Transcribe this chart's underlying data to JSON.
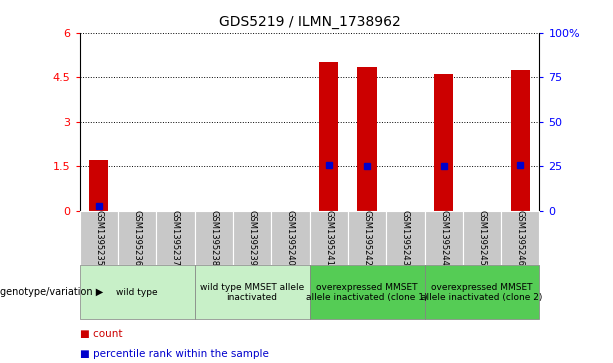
{
  "title": "GDS5219 / ILMN_1738962",
  "samples": [
    "GSM1395235",
    "GSM1395236",
    "GSM1395237",
    "GSM1395238",
    "GSM1395239",
    "GSM1395240",
    "GSM1395241",
    "GSM1395242",
    "GSM1395243",
    "GSM1395244",
    "GSM1395245",
    "GSM1395246"
  ],
  "counts": [
    1.7,
    0,
    0,
    0,
    0,
    0,
    5.0,
    4.85,
    0,
    4.6,
    0,
    4.75
  ],
  "percentiles_left_axis": [
    0.15,
    0,
    0,
    0,
    0,
    0,
    1.55,
    1.5,
    0,
    1.5,
    0,
    1.55
  ],
  "ylim_left": [
    0,
    6
  ],
  "ylim_right": [
    0,
    100
  ],
  "yticks_left": [
    0,
    1.5,
    3,
    4.5,
    6
  ],
  "yticks_right": [
    0,
    25,
    50,
    75,
    100
  ],
  "ytick_labels_left": [
    "0",
    "1.5",
    "3",
    "4.5",
    "6"
  ],
  "ytick_labels_right": [
    "0",
    "25",
    "50",
    "75",
    "100%"
  ],
  "bar_color": "#cc0000",
  "dot_color": "#0000cc",
  "groups": [
    {
      "label": "wild type",
      "start": 0,
      "end": 3
    },
    {
      "label": "wild type MMSET allele\ninactivated",
      "start": 3,
      "end": 6
    },
    {
      "label": "overexpressed MMSET\nallele inactivated (clone 1)",
      "start": 6,
      "end": 9
    },
    {
      "label": "overexpressed MMSET\nallele inactivated (clone 2)",
      "start": 9,
      "end": 12
    }
  ],
  "group_colors": [
    "#c8f0c8",
    "#c8f0c8",
    "#55cc55",
    "#55cc55"
  ],
  "tick_bg_color": "#c8c8c8",
  "bar_width": 0.5,
  "legend_items": [
    {
      "label": "count",
      "color": "#cc0000"
    },
    {
      "label": "percentile rank within the sample",
      "color": "#0000cc"
    }
  ]
}
